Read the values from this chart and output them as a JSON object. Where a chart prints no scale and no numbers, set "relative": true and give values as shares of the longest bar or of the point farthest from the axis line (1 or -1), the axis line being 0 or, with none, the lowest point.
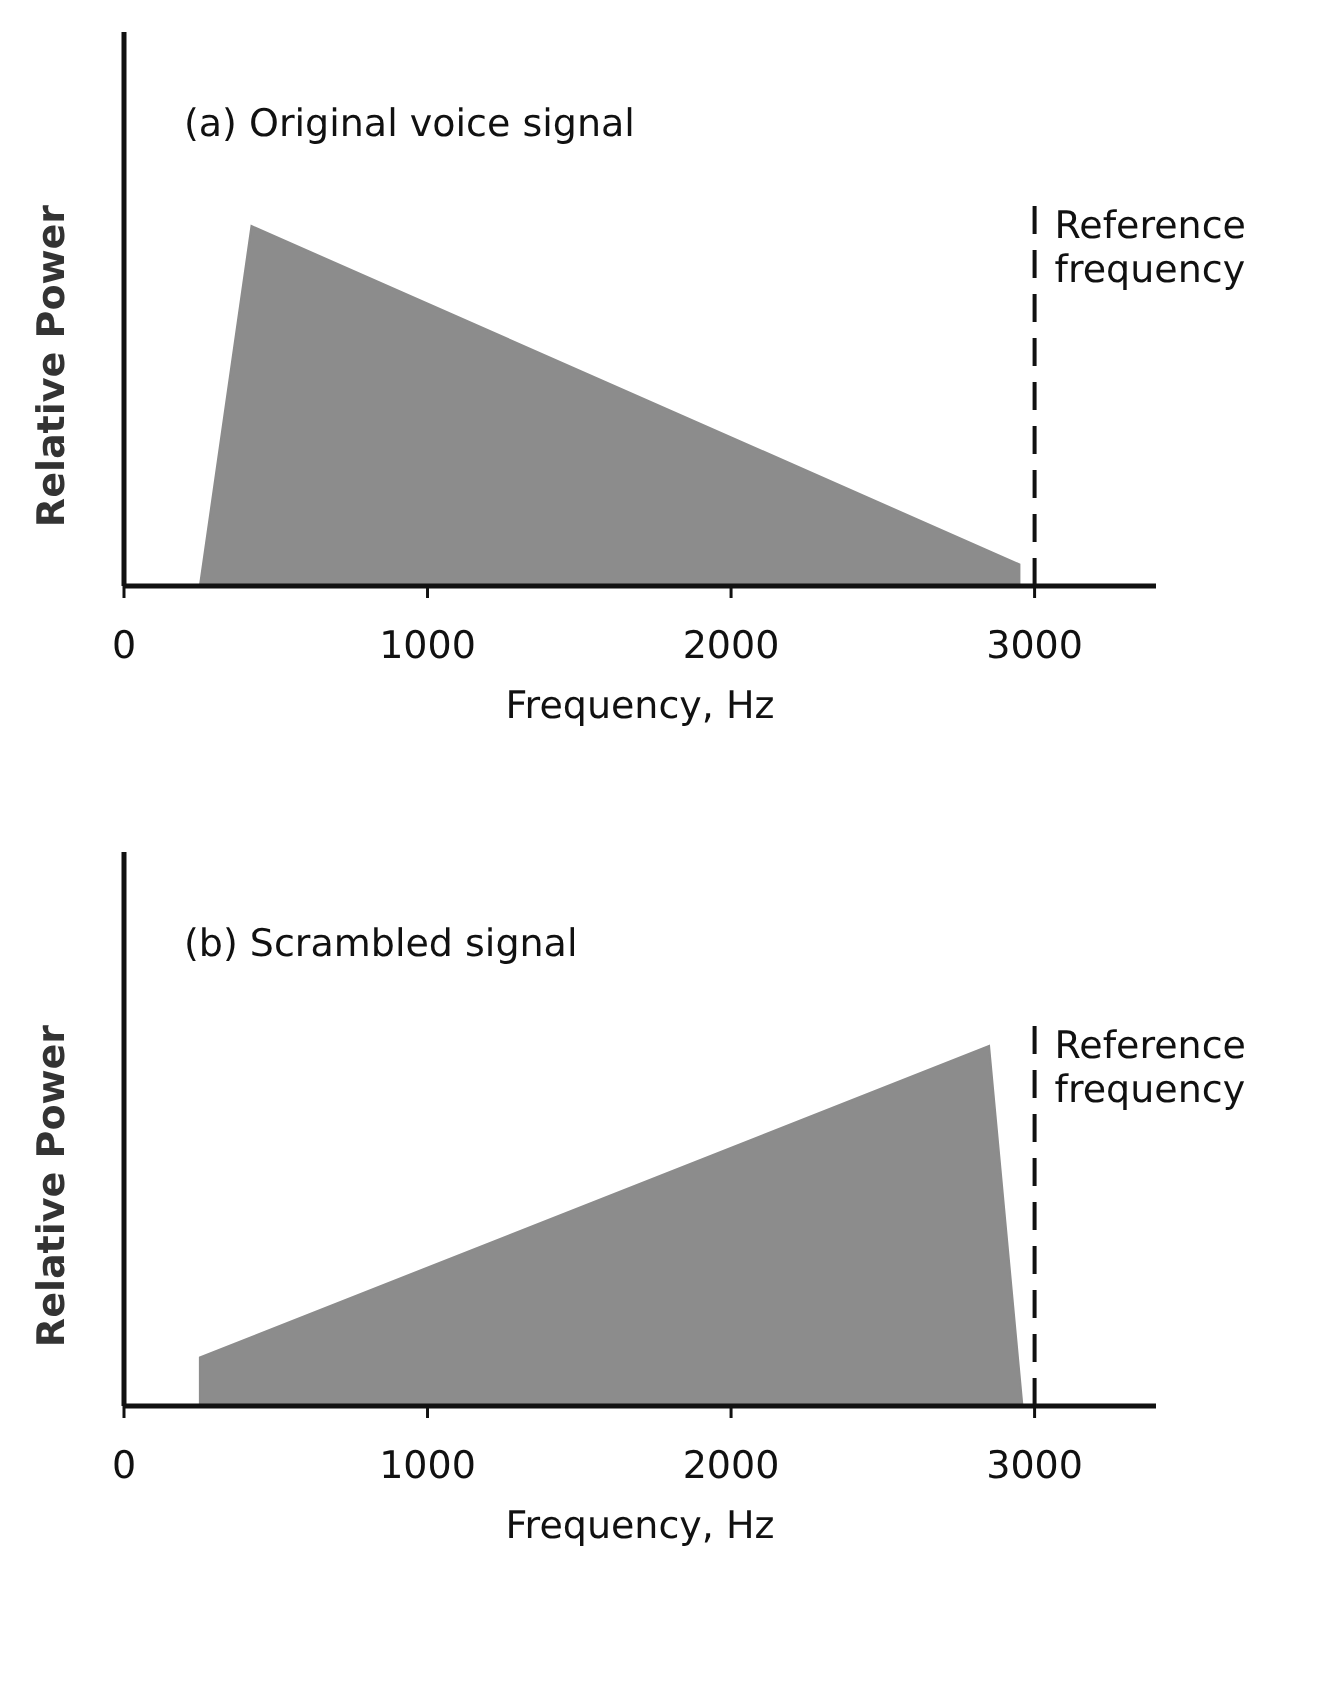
{
  "chart_data": [
    {
      "type": "area",
      "title": "(a) Original voice signal",
      "xlabel": "Frequency, Hz",
      "ylabel": "Relative Power",
      "relative": true,
      "xlim": [
        0,
        3400
      ],
      "xticks": [
        0,
        1000,
        2000,
        3000
      ],
      "series": [
        {
          "color": "#8c8c8c",
          "x": [
            250,
            420,
            2950,
            2950
          ],
          "values": [
            0,
            1,
            0.06,
            0
          ]
        }
      ],
      "ref_lines": [
        {
          "axis": "x",
          "value": 3000,
          "label": "Reference frequency",
          "line_style": "dashed"
        }
      ]
    },
    {
      "type": "area",
      "title": "(b) Scrambled signal",
      "xlabel": "Frequency, Hz",
      "ylabel": "Relative Power",
      "relative": true,
      "xlim": [
        0,
        3400
      ],
      "xticks": [
        0,
        1000,
        2000,
        3000
      ],
      "series": [
        {
          "color": "#8c8c8c",
          "x": [
            250,
            250,
            2850,
            2960
          ],
          "values": [
            0,
            0.135,
            1,
            0
          ]
        }
      ],
      "ref_lines": [
        {
          "axis": "x",
          "value": 3000,
          "label": "Reference frequency",
          "line_style": "dashed"
        }
      ]
    }
  ]
}
